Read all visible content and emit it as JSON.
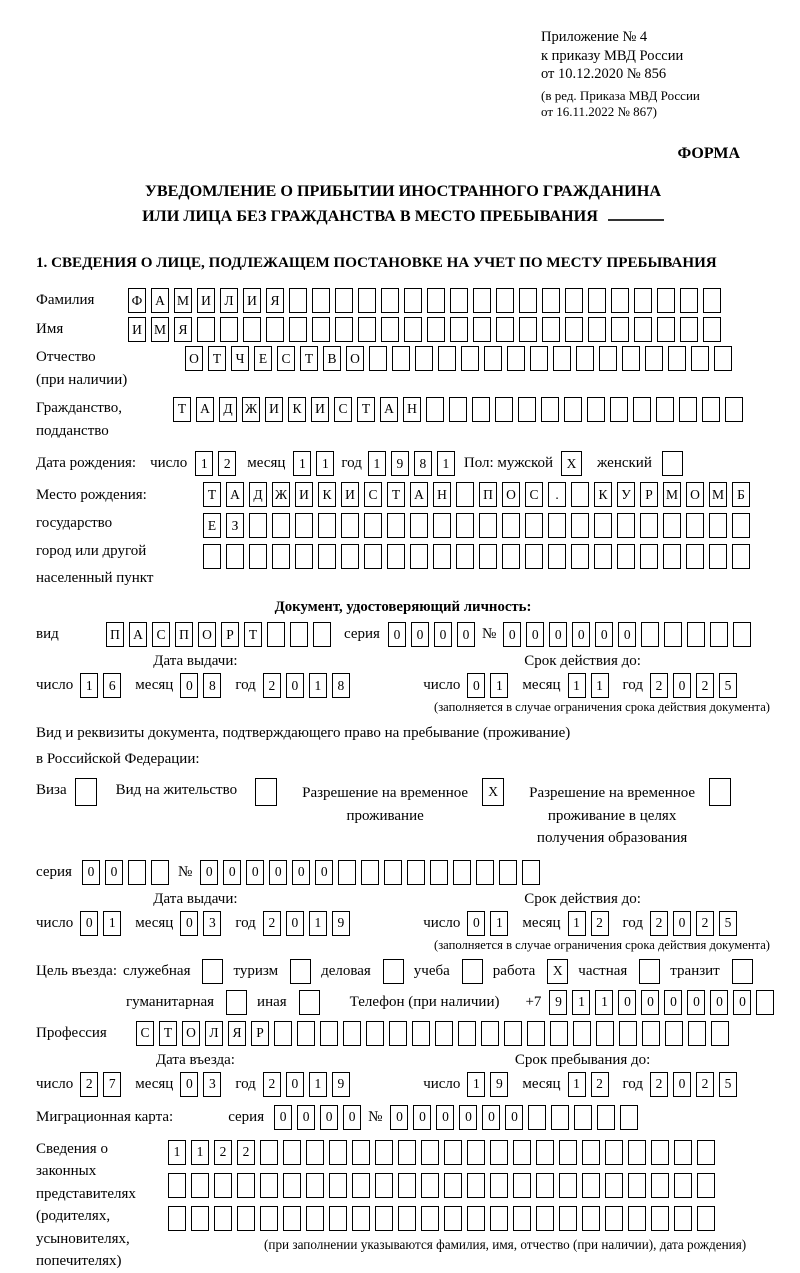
{
  "date_labels": {
    "day": "число",
    "month": "месяц",
    "year": "год"
  },
  "header": {
    "appendix_lines": [
      "Приложение № 4",
      "к приказу МВД России",
      "от 10.12.2020 № 856"
    ],
    "edition_lines": [
      "(в ред. Приказа МВД России",
      "от 16.11.2022 № 867)"
    ],
    "forma_label": "ФОРМА"
  },
  "title": {
    "line1": "УВЕДОМЛЕНИЕ О ПРИБЫТИИ ИНОСТРАННОГО ГРАЖДАНИНА",
    "line2": "ИЛИ ЛИЦА БЕЗ ГРАЖДАНСТВА В МЕСТО ПРЕБЫВАНИЯ"
  },
  "section1": {
    "title": "1. СВЕДЕНИЯ О ЛИЦЕ, ПОДЛЕЖАЩЕМ ПОСТАНОВКЕ НА УЧЕТ ПО МЕСТУ ПРЕБЫВАНИЯ"
  },
  "person": {
    "surname": {
      "label": "Фамилия",
      "cells": {
        "text": "ФАМИЛИЯ",
        "count": 26
      }
    },
    "firstname": {
      "label": "Имя",
      "cells": {
        "text": "ИМЯ",
        "count": 26
      }
    },
    "patronymic": {
      "label1": "Отчество",
      "label2": "(при наличии)",
      "cells": {
        "text": "ОТЧЕСТВО",
        "count": 24
      }
    },
    "citizenship": {
      "label1": "Гражданство,",
      "label2": "подданство",
      "cells": {
        "text": "ТАДЖИКИСТАН",
        "count": 25
      }
    },
    "birth_date": {
      "label": "Дата рождения:",
      "day": {
        "text": "12",
        "count": 2
      },
      "month": {
        "text": "11",
        "count": 2
      },
      "year": {
        "text": "1981",
        "count": 4
      },
      "sex_label": "Пол: мужской",
      "male_box": {
        "text": "X",
        "count": 1
      },
      "female_label": "женский",
      "female_box": {
        "text": "",
        "count": 1
      }
    },
    "birth_place": {
      "label1": "Место рождения:",
      "label2": "государство",
      "label3": "город или другой",
      "label4": "населенный пункт",
      "row1": {
        "text": "ТАДЖИКИСТАН ПОС. КУРМОМБ",
        "count": 24
      },
      "row2": {
        "text": "ЕЗ",
        "count": 24
      },
      "row3": {
        "text": "",
        "count": 24
      }
    }
  },
  "identity_doc": {
    "title": "Документ, удостоверяющий личность:",
    "kind_label": "вид",
    "kind": {
      "text": "ПАСПОРТ",
      "count": 10
    },
    "series_label": "серия",
    "series": {
      "text": "0000",
      "count": 4
    },
    "number_label": "№",
    "number": {
      "text": "000000",
      "count": 11
    },
    "issue_header": "Дата выдачи:",
    "issue": {
      "day": {
        "text": "16",
        "count": 2
      },
      "month": {
        "text": "08",
        "count": 2
      },
      "year": {
        "text": "2018",
        "count": 4
      }
    },
    "valid_header": "Срок действия до:",
    "valid": {
      "day": {
        "text": "01",
        "count": 2
      },
      "month": {
        "text": "11",
        "count": 2
      },
      "year": {
        "text": "2025",
        "count": 4
      }
    },
    "valid_note": "(заполняется в случае ограничения срока действия документа)"
  },
  "residence_doc": {
    "line1": "Вид и реквизиты документа, подтверждающего право на пребывание (проживание)",
    "line2": "в Российской Федерации:",
    "options": [
      {
        "label": "Виза",
        "box": {
          "text": "",
          "count": 1
        }
      },
      {
        "label": "Вид на жительство",
        "box": {
          "text": "",
          "count": 1
        }
      },
      {
        "label": "Разрешение на временное проживание",
        "box": {
          "text": "X",
          "count": 1
        }
      },
      {
        "label": "Разрешение на временное проживание в целях получения образования",
        "box": {
          "text": "",
          "count": 1
        }
      }
    ],
    "series_label": "серия",
    "series": {
      "text": "00",
      "count": 4
    },
    "number_label": "№",
    "number": {
      "text": "000000",
      "count": 15
    },
    "issue_header": "Дата выдачи:",
    "issue": {
      "day": {
        "text": "01",
        "count": 2
      },
      "month": {
        "text": "03",
        "count": 2
      },
      "year": {
        "text": "2019",
        "count": 4
      }
    },
    "valid_header": "Срок действия до:",
    "valid": {
      "day": {
        "text": "01",
        "count": 2
      },
      "month": {
        "text": "12",
        "count": 2
      },
      "year": {
        "text": "2025",
        "count": 4
      }
    },
    "valid_note": "(заполняется в случае ограничения срока действия документа)"
  },
  "visit": {
    "purpose_label": "Цель въезда:",
    "purpose_row1": [
      {
        "label": "служебная",
        "box": {
          "text": "",
          "count": 1
        }
      },
      {
        "label": "туризм",
        "box": {
          "text": "",
          "count": 1
        }
      },
      {
        "label": "деловая",
        "box": {
          "text": "",
          "count": 1
        }
      },
      {
        "label": "учеба",
        "box": {
          "text": "",
          "count": 1
        }
      },
      {
        "label": "работа",
        "box": {
          "text": "X",
          "count": 1
        }
      },
      {
        "label": "частная",
        "box": {
          "text": "",
          "count": 1
        }
      },
      {
        "label": "транзит",
        "box": {
          "text": "",
          "count": 1
        }
      }
    ],
    "purpose_row2": [
      {
        "label": "гуманитарная",
        "box": {
          "text": "",
          "count": 1
        }
      },
      {
        "label": "иная",
        "box": {
          "text": "",
          "count": 1
        }
      }
    ],
    "phone_label": "Телефон (при наличии)",
    "phone_prefix": "+7",
    "phone": {
      "text": "911000000",
      "count": 10
    },
    "profession_label": "Профессия",
    "profession": {
      "text": "СТОЛЯР",
      "count": 26
    },
    "entry_header": "Дата въезда:",
    "entry": {
      "day": {
        "text": "27",
        "count": 2
      },
      "month": {
        "text": "03",
        "count": 2
      },
      "year": {
        "text": "2019",
        "count": 4
      }
    },
    "stay_header": "Срок пребывания до:",
    "stay": {
      "day": {
        "text": "19",
        "count": 2
      },
      "month": {
        "text": "12",
        "count": 2
      },
      "year": {
        "text": "2025",
        "count": 4
      }
    },
    "migration_card_label": "Миграционная карта:",
    "mc_series_label": "серия",
    "mc_series": {
      "text": "0000",
      "count": 4
    },
    "mc_number_label": "№",
    "mc_number": {
      "text": "000000",
      "count": 11
    }
  },
  "representatives": {
    "label1": "Сведения о",
    "label2": "законных",
    "label3": "представителях",
    "label4": "(родителях,",
    "label5": "усыновителях,",
    "label6": "попечителях)",
    "row1": {
      "text": "1122",
      "count": 24
    },
    "row2": {
      "text": "",
      "count": 24
    },
    "row3": {
      "text": "",
      "count": 24
    },
    "note": "(при заполнении указываются фамилия, имя, отчество (при наличии), дата рождения)"
  }
}
